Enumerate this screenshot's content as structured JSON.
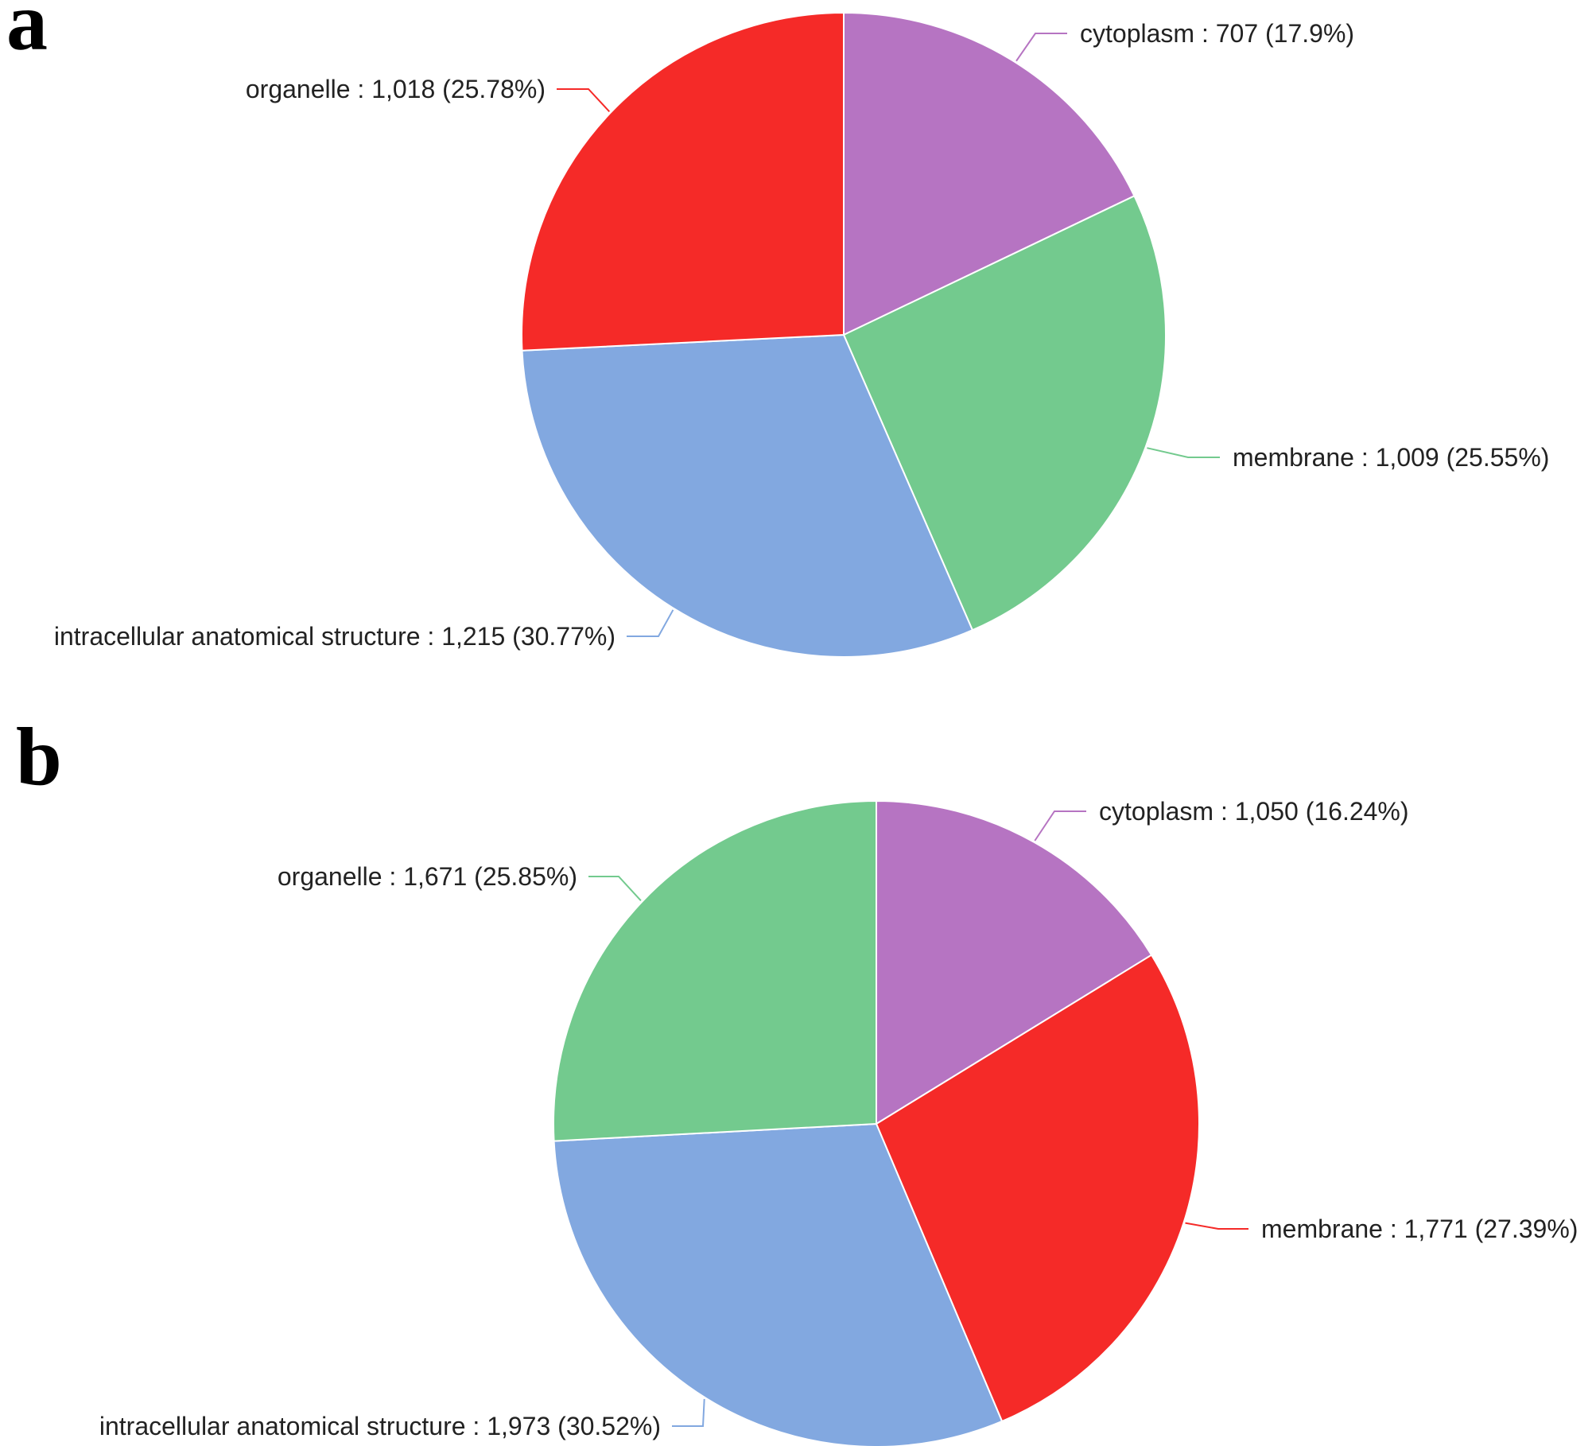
{
  "chart_data": [
    {
      "type": "pie",
      "panel_label": "a",
      "slices": [
        {
          "label": "cytoplasm",
          "value": 707,
          "value_text": "707",
          "percent_text": "17.9%",
          "color": "#b674c2"
        },
        {
          "label": "membrane",
          "value": 1009,
          "value_text": "1,009",
          "percent_text": "25.55%",
          "color": "#73ca8e"
        },
        {
          "label": "intracellular anatomical structure",
          "value": 1215,
          "value_text": "1,215",
          "percent_text": "30.77%",
          "color": "#82a8e0"
        },
        {
          "label": "organelle",
          "value": 1018,
          "value_text": "1,018",
          "percent_text": "25.78%",
          "color": "#f52a28"
        }
      ]
    },
    {
      "type": "pie",
      "panel_label": "b",
      "slices": [
        {
          "label": "cytoplasm",
          "value": 1050,
          "value_text": "1,050",
          "percent_text": "16.24%",
          "color": "#b674c2"
        },
        {
          "label": "membrane",
          "value": 1771,
          "value_text": "1,771",
          "percent_text": "27.39%",
          "color": "#f52a28"
        },
        {
          "label": "intracellular anatomical structure",
          "value": 1973,
          "value_text": "1,973",
          "percent_text": "30.52%",
          "color": "#82a8e0"
        },
        {
          "label": "organelle",
          "value": 1671,
          "value_text": "1,671",
          "percent_text": "25.85%",
          "color": "#73ca8e"
        }
      ]
    }
  ]
}
